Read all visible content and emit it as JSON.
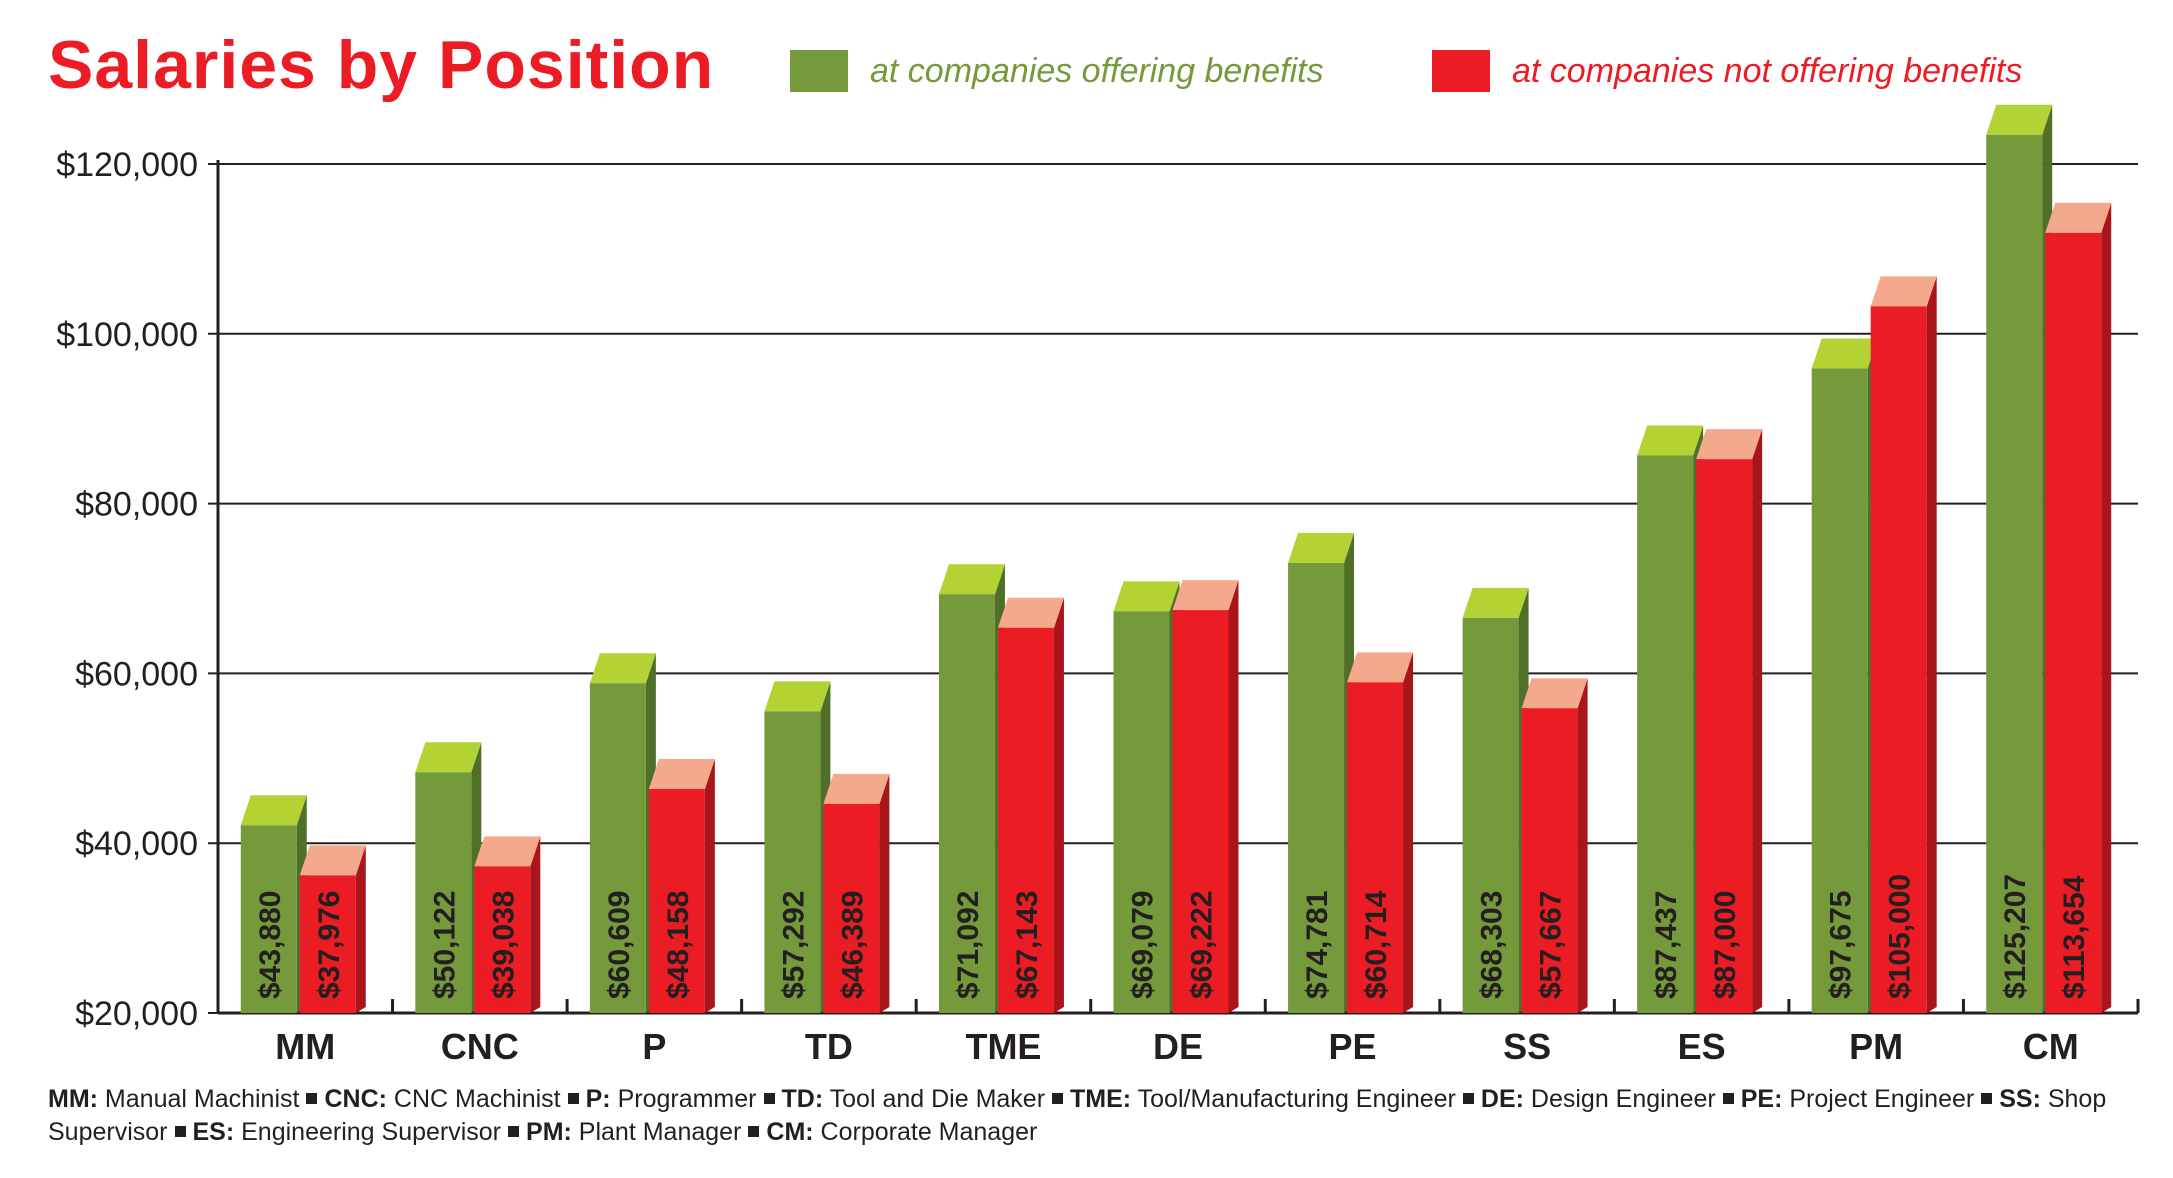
{
  "chart_data": {
    "type": "bar",
    "title": "Salaries by Position",
    "categories": [
      "MM",
      "CNC",
      "P",
      "TD",
      "TME",
      "DE",
      "PE",
      "SS",
      "ES",
      "PM",
      "CM"
    ],
    "series": [
      {
        "name": "at companies offering benefits",
        "color": "#749a3c",
        "values": [
          43880,
          50122,
          60609,
          57292,
          71092,
          69079,
          74781,
          68303,
          87437,
          97675,
          125207
        ],
        "labels": [
          "$43,880",
          "$50,122",
          "$60,609",
          "$57,292",
          "$71,092",
          "$69,079",
          "$74,781",
          "$68,303",
          "$87,437",
          "$97,675",
          "$125,207"
        ]
      },
      {
        "name": "at companies not offering benefits",
        "color": "#ec1c24",
        "values": [
          37976,
          39038,
          48158,
          46389,
          67143,
          69222,
          60714,
          57667,
          87000,
          105000,
          113654
        ],
        "labels": [
          "$37,976",
          "$39,038",
          "$48,158",
          "$46,389",
          "$67,143",
          "$69,222",
          "$60,714",
          "$57,667",
          "$87,000",
          "$105,000",
          "$113,654"
        ]
      }
    ],
    "ylim": [
      20000,
      125207
    ],
    "yticks": [
      20000,
      40000,
      60000,
      80000,
      100000,
      120000
    ],
    "ytick_labels": [
      "$20,000",
      "$40,000",
      "$60,000",
      "$80,000",
      "$100,000",
      "$120,000"
    ],
    "legend_position": "top",
    "grid": true
  },
  "legend": {
    "benefits_label": "at companies offering benefits",
    "no_benefits_label": "at companies not offering benefits"
  },
  "footnote": {
    "items": [
      {
        "abbr": "MM:",
        "text": " Manual Machinist"
      },
      {
        "abbr": "CNC:",
        "text": " CNC Machinist"
      },
      {
        "abbr": "P:",
        "text": " Programmer"
      },
      {
        "abbr": "TD:",
        "text": " Tool and Die Maker"
      },
      {
        "abbr": "TME:",
        "text": " Tool/Manufacturing Engineer"
      },
      {
        "abbr": "DE:",
        "text": " Design Engineer"
      },
      {
        "abbr": "PE:",
        "text": " Project Engineer"
      },
      {
        "abbr": "SS:",
        "text": " Shop Supervisor"
      },
      {
        "abbr": "ES:",
        "text": " Engineering Supervisor"
      },
      {
        "abbr": "PM:",
        "text": " Plant Manager"
      },
      {
        "abbr": "CM:",
        "text": " Corporate Manager"
      }
    ]
  },
  "colors": {
    "title": "#ec1c24",
    "benefits": "#749a3c",
    "benefits_top": "#b3d334",
    "benefits_side": "#50702a",
    "no_benefits": "#ec1c24",
    "no_benefits_top": "#f5a98c",
    "no_benefits_side": "#a8151b",
    "benefits_legend_text": "#749a3c",
    "no_benefits_legend_text": "#ec1c24"
  }
}
